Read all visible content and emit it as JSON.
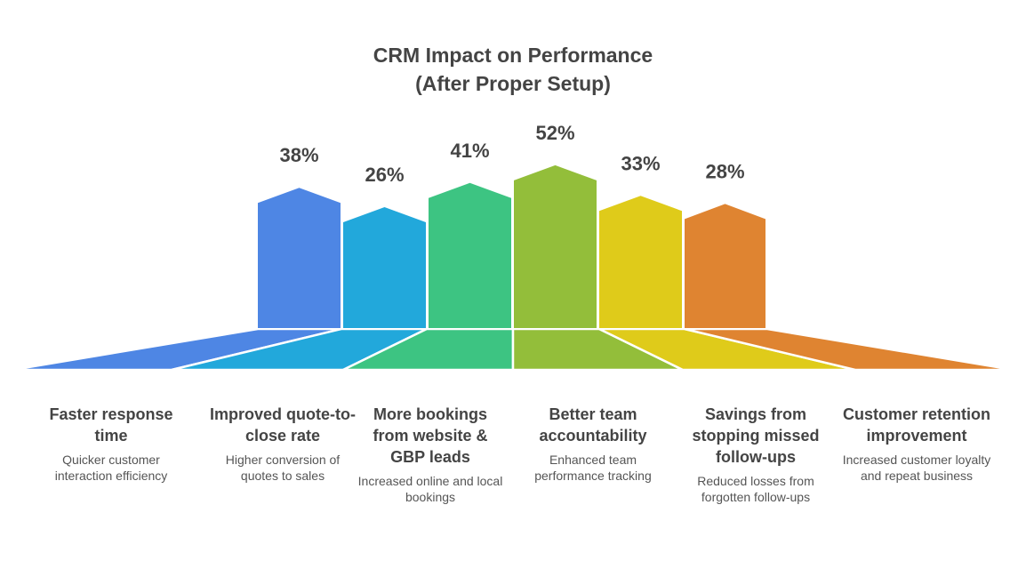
{
  "title_line1": "CRM Impact on Performance",
  "title_line2": "(After Proper Setup)",
  "chart_data": {
    "type": "bar",
    "title": "CRM Impact on Performance (After Proper Setup)",
    "categories": [
      "Faster response time",
      "Improved quote-to-close rate",
      "More bookings from website & GBP leads",
      "Better team accountability",
      "Savings from stopping missed follow-ups",
      "Customer retention improvement"
    ],
    "values": [
      38,
      26,
      41,
      52,
      33,
      28
    ],
    "value_labels": [
      "38%",
      "26%",
      "41%",
      "52%",
      "33%",
      "28%"
    ],
    "colors": [
      "#4E86E4",
      "#22A8DB",
      "#3DC482",
      "#93BE3A",
      "#DFCB1A",
      "#DF8431"
    ]
  },
  "items": [
    {
      "heading": "Faster response time",
      "desc": "Quicker customer interaction efficiency"
    },
    {
      "heading": "Improved quote-to-close rate",
      "desc": "Higher conversion of quotes to sales"
    },
    {
      "heading": "More bookings from website & GBP leads",
      "desc": "Increased online and local bookings"
    },
    {
      "heading": "Better team accountability",
      "desc": "Enhanced team performance tracking"
    },
    {
      "heading": "Savings from stopping missed follow-ups",
      "desc": "Reduced losses from forgotten follow-ups"
    },
    {
      "heading": "Customer retention improvement",
      "desc": "Increased customer loyalty and repeat business"
    }
  ]
}
